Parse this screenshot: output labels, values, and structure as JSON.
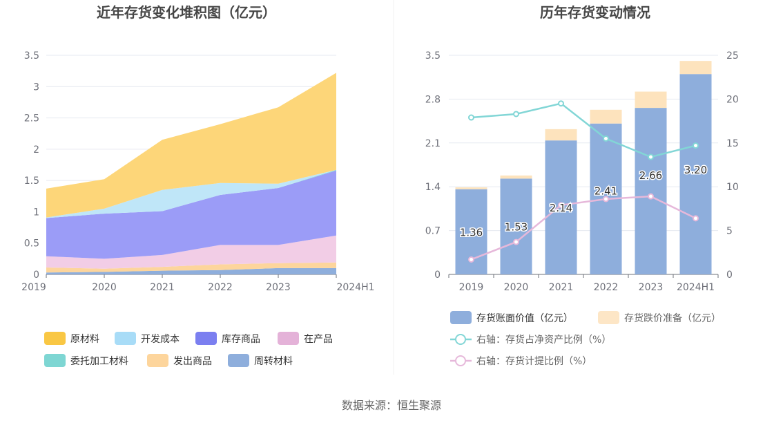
{
  "source_text": "数据来源：恒生聚源",
  "chart_data": [
    {
      "type": "area",
      "stacked": true,
      "title": "近年存货变化堆积图（亿元）",
      "categories": [
        "2019",
        "2020",
        "2021",
        "2022",
        "2023",
        "2024H1"
      ],
      "ylim": [
        0,
        3.5
      ],
      "yticks": [
        "0",
        "0.5",
        "1",
        "1.5",
        "2",
        "2.5",
        "3",
        "3.5"
      ],
      "grid": true,
      "legend_placement": "bottom",
      "series": [
        {
          "name": "周转材料",
          "color": "#8eaedc",
          "values": [
            0.03,
            0.04,
            0.06,
            0.07,
            0.1,
            0.1
          ]
        },
        {
          "name": "发出商品",
          "color": "#fdd59c",
          "values": [
            0.08,
            0.05,
            0.06,
            0.09,
            0.08,
            0.09
          ]
        },
        {
          "name": "在产品",
          "color": "#f2cde6",
          "values": [
            0.18,
            0.16,
            0.19,
            0.31,
            0.29,
            0.43
          ]
        },
        {
          "name": "库存商品",
          "color": "#9b9cf7",
          "values": [
            0.61,
            0.72,
            0.7,
            0.8,
            0.91,
            1.04
          ]
        },
        {
          "name": "委托加工材料",
          "color": "#82d9d6",
          "values": [
            0,
            0,
            0,
            0,
            0,
            0.01
          ]
        },
        {
          "name": "开发成本",
          "color": "#bfe6f8",
          "values": [
            0.01,
            0.08,
            0.34,
            0.19,
            0.07,
            0.0
          ]
        },
        {
          "name": "原材料",
          "color": "#fdd679",
          "values": [
            0.46,
            0.47,
            0.8,
            0.94,
            1.22,
            1.55
          ]
        }
      ],
      "legend_rows": [
        [
          {
            "name": "原材料",
            "color": "#f9c744"
          },
          {
            "name": "开发成本",
            "color": "#a8dcf7"
          },
          {
            "name": "库存商品",
            "color": "#7b7ff0"
          },
          {
            "name": "在产品",
            "color": "#e4b2d8"
          }
        ],
        [
          {
            "name": "委托加工材料",
            "color": "#7ed6d3"
          },
          {
            "name": "发出商品",
            "color": "#fdd59c"
          },
          {
            "name": "周转材料",
            "color": "#8eaedc"
          }
        ]
      ]
    },
    {
      "type": "bar",
      "stacked": true,
      "title": "历年存货变动情况",
      "categories": [
        "2019",
        "2020",
        "2021",
        "2022",
        "2023",
        "2024H1"
      ],
      "ylim": [
        0,
        3.5
      ],
      "yticks": [
        "0",
        "0.7",
        "1.4",
        "2.1",
        "2.8",
        "3.5"
      ],
      "y2lim": [
        0,
        25
      ],
      "y2ticks": [
        "0",
        "5",
        "10",
        "15",
        "20",
        "25"
      ],
      "grid": true,
      "legend_placement": "bottom",
      "series": [
        {
          "name": "存货账面价值（亿元）",
          "color": "#8eaedc",
          "values": [
            1.36,
            1.53,
            2.14,
            2.41,
            2.66,
            3.2
          ],
          "labels": [
            "1.36",
            "1.53",
            "2.14",
            "2.41",
            "2.66",
            "3.20"
          ]
        },
        {
          "name": "存货跌价准备（亿元）",
          "color": "#fde3bd",
          "legend_color": "#fde6c6",
          "values": [
            0.03,
            0.05,
            0.18,
            0.22,
            0.26,
            0.21
          ]
        }
      ],
      "lines": [
        {
          "name": "右轴：存货占净资产比例（%）",
          "axis": "right",
          "color": "#82d6d6",
          "values": [
            17.9,
            18.3,
            19.5,
            15.5,
            13.4,
            14.7
          ]
        },
        {
          "name": "右轴：存货计提比例（%）",
          "axis": "right",
          "color": "#e6b8da",
          "values": [
            1.7,
            3.7,
            7.9,
            8.6,
            8.9,
            6.4
          ]
        }
      ]
    }
  ]
}
